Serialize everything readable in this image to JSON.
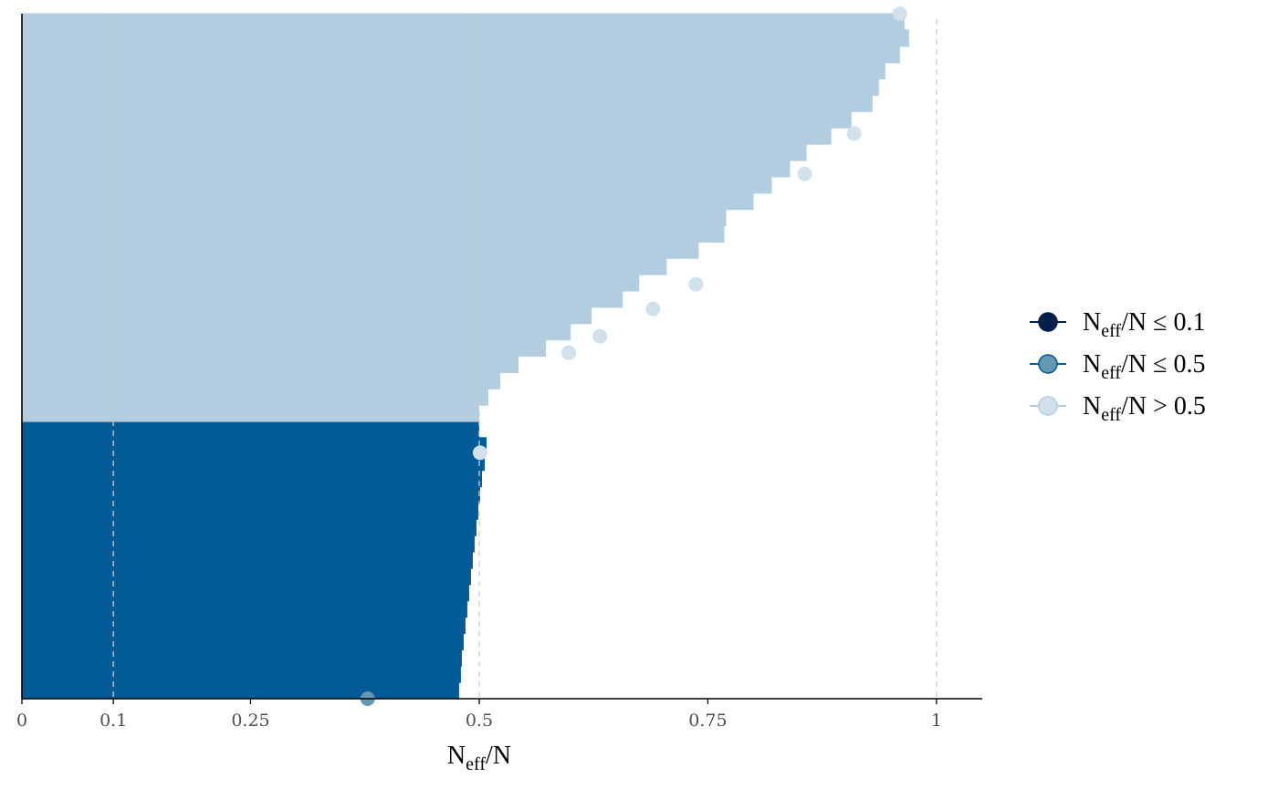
{
  "chart_data": {
    "type": "bar",
    "orientation": "horizontal",
    "xlabel": {
      "base": "N",
      "sub": "eff",
      "tail": "/N"
    },
    "ylabel": "",
    "xlim": [
      0,
      1.05
    ],
    "x_ticks": [
      {
        "value": 0,
        "label": "0"
      },
      {
        "value": 0.1,
        "label": "0.1"
      },
      {
        "value": 0.25,
        "label": "0.25"
      },
      {
        "value": 0.5,
        "label": "0.5"
      },
      {
        "value": 0.75,
        "label": "0.75"
      },
      {
        "value": 1,
        "label": "1"
      }
    ],
    "reference_lines": [
      0.1,
      0.5,
      1
    ],
    "grid": false,
    "legend_position": "right",
    "colors": {
      "low": "#011F4B",
      "mid": "#025A96",
      "high": "#B3CDE0",
      "mid_point": "#6497B1",
      "high_point": "#D1E1EC",
      "reference_line": "#CCCCCC"
    },
    "legend": [
      {
        "key": "low",
        "base": "N",
        "sub": "eff",
        "tail": "/N ≤ 0.1"
      },
      {
        "key": "mid",
        "base": "N",
        "sub": "eff",
        "tail": "/N ≤ 0.5"
      },
      {
        "key": "high",
        "base": "N",
        "sub": "eff",
        "tail": "/N > 0.5"
      }
    ],
    "series": [
      {
        "category": "mid",
        "values": [
          0.478,
          0.48,
          0.481,
          0.483,
          0.485,
          0.487,
          0.489,
          0.491,
          0.493,
          0.495,
          0.497,
          0.499,
          0.501,
          0.503,
          0.506,
          0.508,
          0.5
        ]
      },
      {
        "category": "high",
        "values": [
          0.5,
          0.51,
          0.523,
          0.543,
          0.573,
          0.6,
          0.623,
          0.657,
          0.675,
          0.705,
          0.74,
          0.768,
          0.77,
          0.8,
          0.82,
          0.84,
          0.858,
          0.885,
          0.907,
          0.93,
          0.937,
          0.944,
          0.96,
          0.97,
          0.965
        ]
      }
    ],
    "highlight_points": [
      {
        "category": "mid",
        "value": 0.378,
        "position": 0
      },
      {
        "category": "high",
        "value": 0.501,
        "position": 0.359
      },
      {
        "category": "high",
        "value": 0.598,
        "position": 0.505
      },
      {
        "category": "high",
        "value": 0.632,
        "position": 0.529
      },
      {
        "category": "high",
        "value": 0.69,
        "position": 0.569
      },
      {
        "category": "high",
        "value": 0.737,
        "position": 0.605
      },
      {
        "category": "high",
        "value": 0.856,
        "position": 0.766
      },
      {
        "category": "high",
        "value": 0.91,
        "position": 0.825
      },
      {
        "category": "high",
        "value": 0.96,
        "position": 1
      }
    ]
  }
}
